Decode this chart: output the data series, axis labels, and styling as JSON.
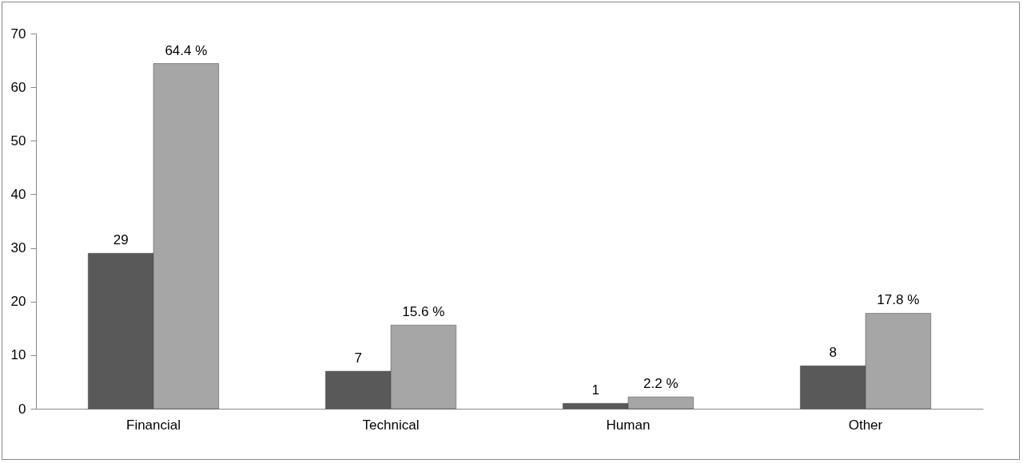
{
  "chart_data": {
    "type": "bar",
    "categories": [
      "Financial",
      "Technical",
      "Human",
      "Other"
    ],
    "series": [
      {
        "color": "#595959",
        "values": [
          29,
          7,
          1,
          8
        ],
        "value_labels": [
          "29",
          "7",
          "1",
          "8"
        ]
      },
      {
        "color": "#a6a6a6",
        "values": [
          64.4,
          15.6,
          2.2,
          17.8
        ],
        "value_labels": [
          "64.4 %",
          "15.6 %",
          "2.2 %",
          "17.8 %"
        ]
      }
    ],
    "ylim": [
      0,
      70
    ],
    "yticks": [
      0,
      10,
      20,
      30,
      40,
      50,
      60,
      70
    ],
    "grid": false,
    "legend": false
  }
}
